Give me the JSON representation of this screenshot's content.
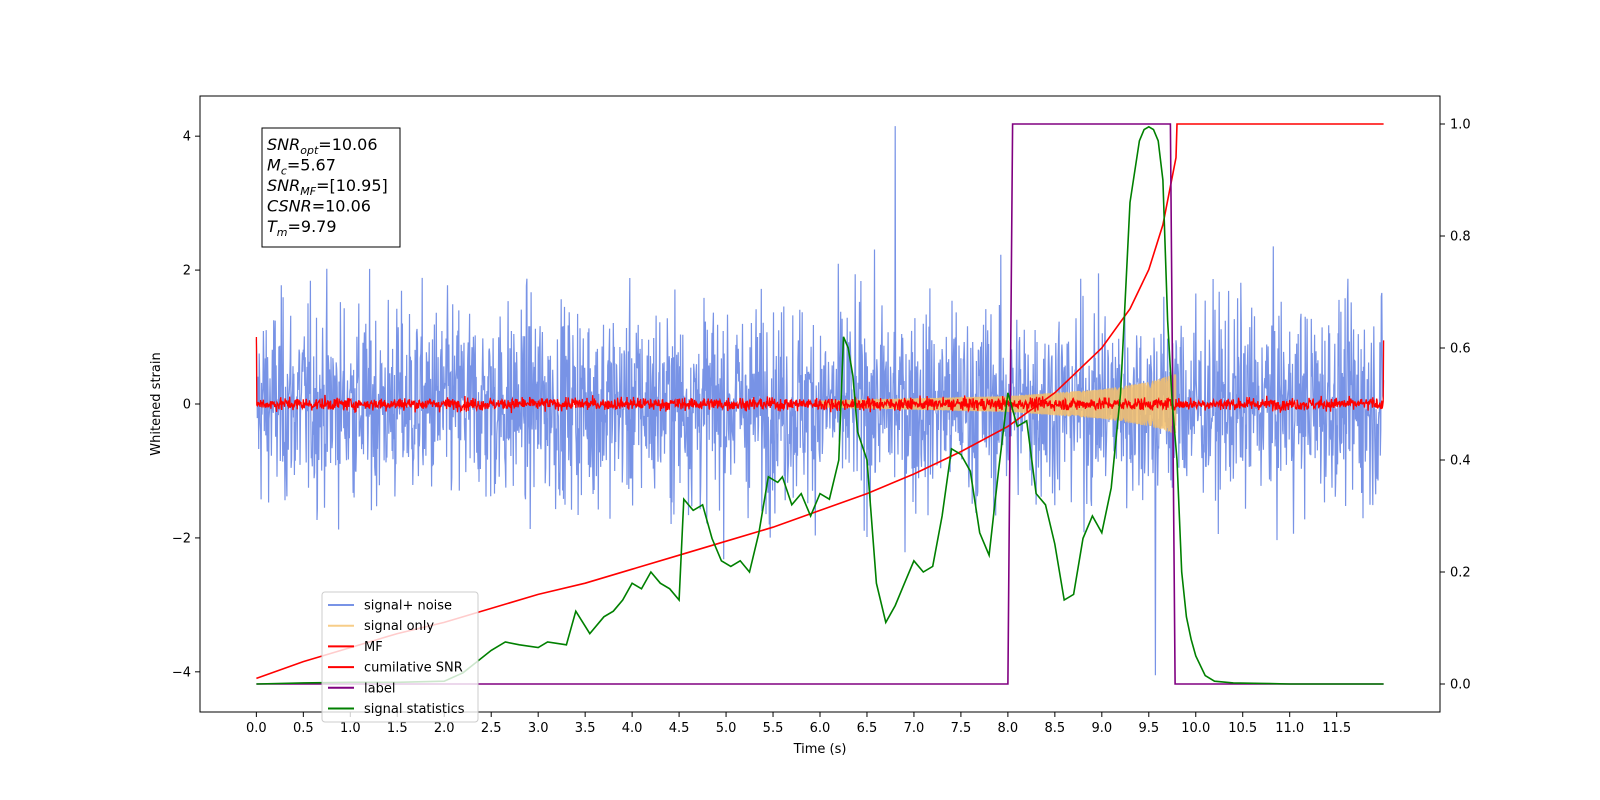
{
  "chart_data": {
    "type": "line",
    "xlabel": "Time (s)",
    "ylabel": "Whitened strain",
    "xlim": [
      -0.6,
      12.6
    ],
    "ylim": [
      -4.6,
      4.6
    ],
    "y2lim": [
      -0.05,
      1.05
    ],
    "grid": false,
    "legend_position": "lower-left",
    "x_ticks": [
      0.0,
      0.5,
      1.0,
      1.5,
      2.0,
      2.5,
      3.0,
      3.5,
      4.0,
      4.5,
      5.0,
      5.5,
      6.0,
      6.5,
      7.0,
      7.5,
      8.0,
      8.5,
      9.0,
      9.5,
      10.0,
      10.5,
      11.0,
      11.5
    ],
    "x_tick_labels": [
      "0.0",
      "0.5",
      "1.0",
      "1.5",
      "2.0",
      "2.5",
      "3.0",
      "3.5",
      "4.0",
      "4.5",
      "5.0",
      "5.5",
      "6.0",
      "6.5",
      "7.0",
      "7.5",
      "8.0",
      "8.5",
      "9.0",
      "9.5",
      "10.0",
      "10.5",
      "11.0",
      "11.5"
    ],
    "y_ticks": [
      -4,
      -2,
      0,
      2,
      4
    ],
    "y_tick_labels": [
      "−4",
      "−2",
      "0",
      "2",
      "4"
    ],
    "y2_ticks": [
      0.0,
      0.2,
      0.4,
      0.6,
      0.8,
      1.0
    ],
    "y2_tick_labels": [
      "0.0",
      "0.2",
      "0.4",
      "0.6",
      "0.8",
      "1.0"
    ],
    "annotation": {
      "lines": [
        {
          "base": "SNR",
          "sub": "opt",
          "value": "=10.06"
        },
        {
          "base": "M",
          "sub": "c",
          "value": "=5.67"
        },
        {
          "base": "SNR",
          "sub": "MF",
          "value": "=[10.95]"
        },
        {
          "base": "CSNR",
          "sub": "",
          "value": "=10.06"
        },
        {
          "base": "T",
          "sub": "m",
          "value": "=9.79"
        }
      ]
    },
    "series": [
      {
        "name": "signal+ noise",
        "axis": "left",
        "color": "#7893e6",
        "kind": "noise",
        "x_range": [
          0.0,
          12.0
        ],
        "amplitude_envelope": [
          [
            0.0,
            2.3
          ],
          [
            12.0,
            2.3
          ]
        ],
        "peaks": [
          [
            6.8,
            4.15
          ],
          [
            9.57,
            -4.05
          ]
        ]
      },
      {
        "name": "signal only",
        "axis": "left",
        "color": "#f5c06a",
        "kind": "chirp",
        "x_range": [
          6.0,
          9.79
        ],
        "amplitude_envelope": [
          [
            6.0,
            0.05
          ],
          [
            8.0,
            0.12
          ],
          [
            9.0,
            0.22
          ],
          [
            9.5,
            0.33
          ],
          [
            9.79,
            0.45
          ]
        ]
      },
      {
        "name": "MF",
        "axis": "left",
        "color": "#ff0000",
        "kind": "noise",
        "x_range": [
          0.0,
          12.0
        ],
        "amplitude_envelope": [
          [
            0.0,
            0.15
          ],
          [
            12.0,
            0.15
          ]
        ],
        "edges": [
          [
            0.0,
            1.0
          ],
          [
            12.0,
            0.95
          ]
        ]
      },
      {
        "name": "cumilative SNR",
        "axis": "right",
        "color": "#ff0000",
        "kind": "line",
        "x": [
          0.0,
          0.5,
          1.0,
          1.5,
          2.0,
          2.5,
          3.0,
          3.5,
          4.0,
          4.5,
          5.0,
          5.5,
          6.0,
          6.5,
          7.0,
          7.5,
          8.0,
          8.5,
          9.0,
          9.3,
          9.5,
          9.65,
          9.79,
          9.8,
          12.0
        ],
        "y": [
          0.01,
          0.04,
          0.065,
          0.09,
          0.11,
          0.135,
          0.16,
          0.18,
          0.205,
          0.23,
          0.255,
          0.28,
          0.31,
          0.34,
          0.375,
          0.415,
          0.46,
          0.52,
          0.6,
          0.67,
          0.74,
          0.82,
          0.94,
          1.0,
          1.0
        ]
      },
      {
        "name": "label",
        "axis": "right",
        "color": "#800080",
        "kind": "line",
        "x": [
          0.0,
          8.0,
          8.05,
          9.73,
          9.78,
          12.0
        ],
        "y": [
          0.0,
          0.0,
          1.0,
          1.0,
          0.0,
          0.0
        ]
      },
      {
        "name": "signal statistics",
        "axis": "right",
        "color": "#008000",
        "kind": "line",
        "x": [
          0.0,
          0.5,
          1.0,
          1.5,
          2.0,
          2.2,
          2.35,
          2.5,
          2.65,
          2.8,
          3.0,
          3.1,
          3.3,
          3.4,
          3.55,
          3.7,
          3.8,
          3.9,
          4.0,
          4.1,
          4.2,
          4.3,
          4.4,
          4.5,
          4.55,
          4.65,
          4.75,
          4.85,
          4.95,
          5.05,
          5.15,
          5.25,
          5.35,
          5.45,
          5.55,
          5.6,
          5.7,
          5.8,
          5.9,
          6.0,
          6.1,
          6.2,
          6.25,
          6.3,
          6.35,
          6.4,
          6.5,
          6.6,
          6.7,
          6.8,
          6.9,
          7.0,
          7.1,
          7.2,
          7.3,
          7.4,
          7.5,
          7.6,
          7.7,
          7.8,
          7.9,
          8.0,
          8.1,
          8.2,
          8.3,
          8.4,
          8.5,
          8.6,
          8.7,
          8.8,
          8.9,
          9.0,
          9.1,
          9.2,
          9.3,
          9.4,
          9.45,
          9.5,
          9.55,
          9.6,
          9.65,
          9.7,
          9.75,
          9.8,
          9.85,
          9.9,
          9.95,
          10.0,
          10.1,
          10.2,
          10.4,
          10.7,
          11.0,
          12.0
        ],
        "y": [
          0.0,
          0.002,
          0.003,
          0.003,
          0.005,
          0.02,
          0.04,
          0.06,
          0.075,
          0.07,
          0.065,
          0.075,
          0.07,
          0.13,
          0.09,
          0.12,
          0.13,
          0.15,
          0.18,
          0.17,
          0.2,
          0.18,
          0.17,
          0.15,
          0.33,
          0.31,
          0.32,
          0.26,
          0.22,
          0.21,
          0.22,
          0.2,
          0.27,
          0.37,
          0.36,
          0.37,
          0.32,
          0.34,
          0.3,
          0.34,
          0.33,
          0.4,
          0.62,
          0.6,
          0.55,
          0.45,
          0.4,
          0.18,
          0.11,
          0.14,
          0.18,
          0.22,
          0.2,
          0.21,
          0.3,
          0.42,
          0.41,
          0.38,
          0.27,
          0.23,
          0.38,
          0.52,
          0.46,
          0.47,
          0.34,
          0.32,
          0.25,
          0.15,
          0.16,
          0.26,
          0.3,
          0.27,
          0.35,
          0.52,
          0.86,
          0.97,
          0.99,
          0.995,
          0.99,
          0.97,
          0.9,
          0.65,
          0.5,
          0.4,
          0.2,
          0.12,
          0.08,
          0.05,
          0.015,
          0.005,
          0.002,
          0.001,
          0.0,
          0.0
        ]
      }
    ]
  }
}
